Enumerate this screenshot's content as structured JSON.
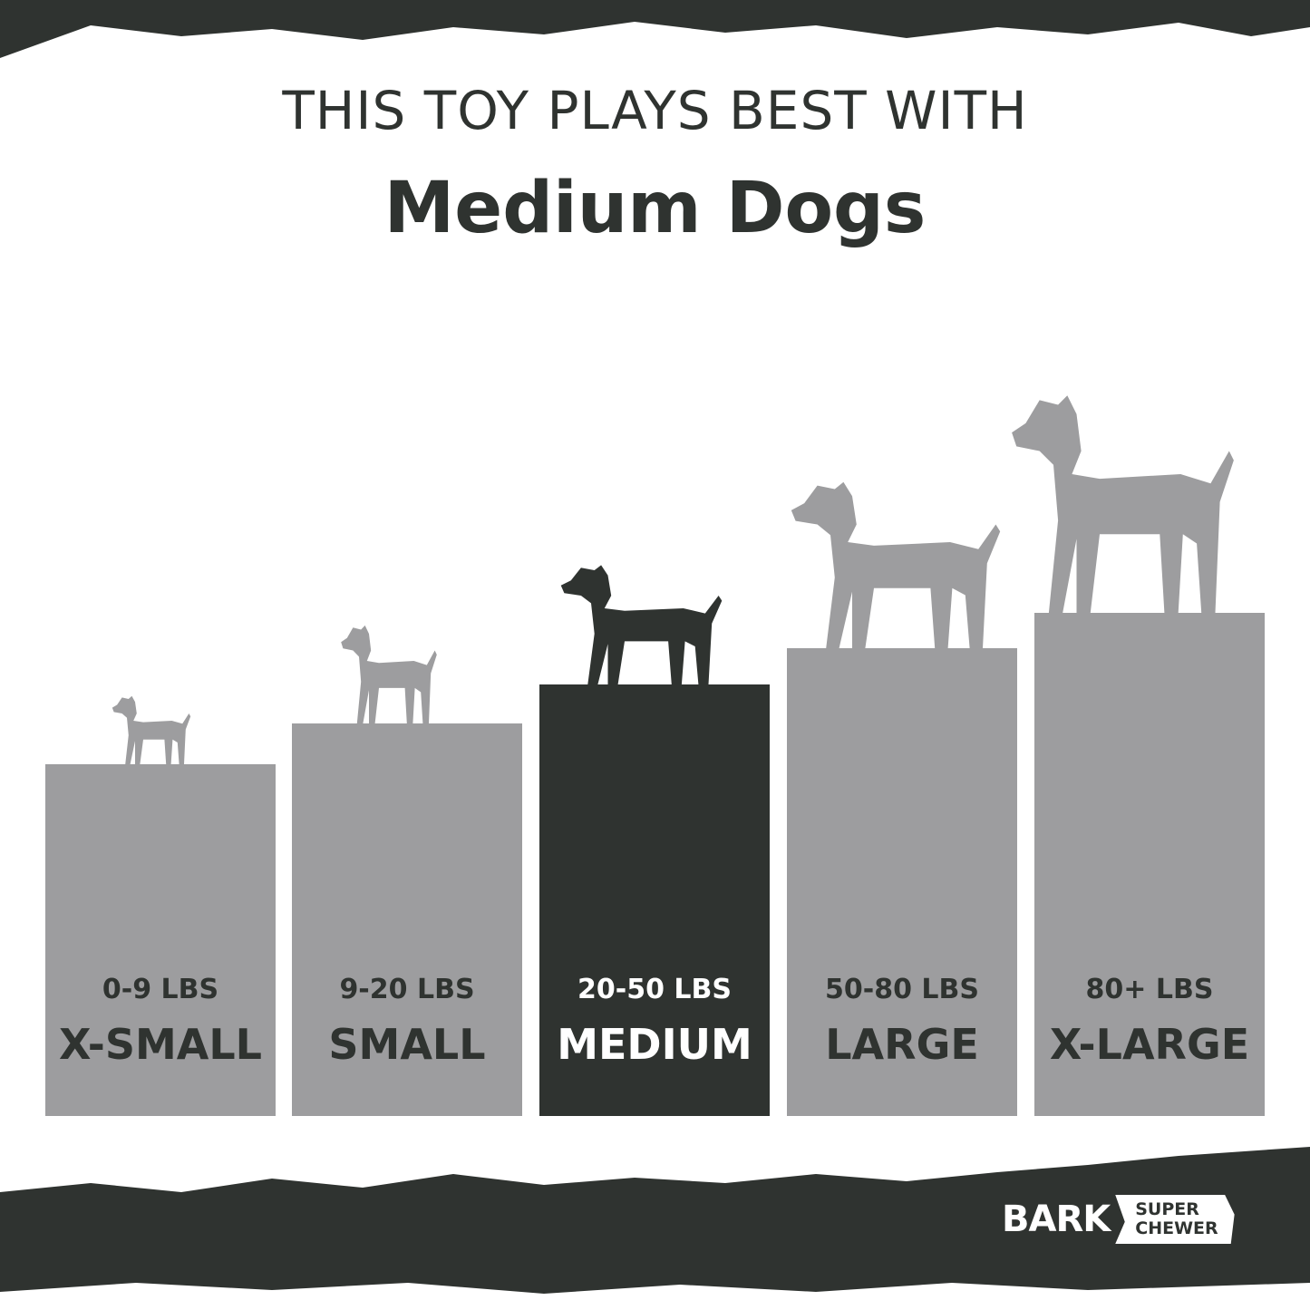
{
  "header": {
    "line1": "THIS TOY PLAYS BEST WITH",
    "line2": "Medium Dogs"
  },
  "colors": {
    "bar": "#9d9d9f",
    "highlight": "#2f3330",
    "background": "#ffffff"
  },
  "sizes": [
    {
      "weight": "0-9 LBS",
      "label": "X-SMALL",
      "highlighted": false,
      "icon": "chihuahua-silhouette-icon"
    },
    {
      "weight": "9-20 LBS",
      "label": "SMALL",
      "highlighted": false,
      "icon": "terrier-silhouette-icon"
    },
    {
      "weight": "20-50 LBS",
      "label": "MEDIUM",
      "highlighted": true,
      "icon": "labrador-silhouette-icon"
    },
    {
      "weight": "50-80 LBS",
      "label": "LARGE",
      "highlighted": false,
      "icon": "retriever-silhouette-icon"
    },
    {
      "weight": "80+ LBS",
      "label": "X-LARGE",
      "highlighted": false,
      "icon": "great-dane-silhouette-icon"
    }
  ],
  "logo": {
    "brand": "BARK",
    "line1": "SUPER",
    "line2": "CHEWER"
  }
}
